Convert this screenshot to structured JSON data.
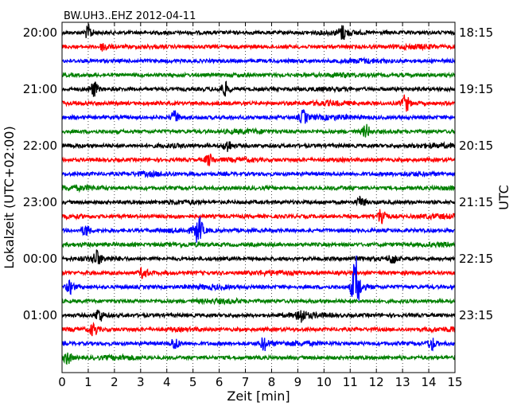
{
  "chart_data": {
    "type": "line",
    "title": "BW.UH3..EHZ 2012-04-11",
    "xlabel": "Zeit  [min]",
    "ylabel": "Lokalzeit (UTC+02:00)",
    "ylabel_right": "UTC",
    "xlim": [
      0,
      15
    ],
    "x_ticks": [
      "0",
      "1",
      "2",
      "3",
      "4",
      "5",
      "6",
      "7",
      "8",
      "9",
      "10",
      "11",
      "12",
      "13",
      "14",
      "15"
    ],
    "left_ticks": [
      "20:00",
      "21:00",
      "22:00",
      "23:00",
      "00:00",
      "01:00"
    ],
    "right_ticks": [
      "18:15",
      "19:15",
      "20:15",
      "21:15",
      "22:15",
      "23:15"
    ],
    "grid": true,
    "trace_colors": [
      "#000000",
      "#ff0000",
      "#0000ff",
      "#008000"
    ],
    "num_traces": 24,
    "traces_per_hour": 4,
    "minutes_per_trace": 15,
    "events": [
      {
        "trace": 0,
        "minute": 1.0,
        "amp": 1.1
      },
      {
        "trace": 0,
        "minute": 10.7,
        "amp": 1.0
      },
      {
        "trace": 1,
        "minute": 1.6,
        "amp": 0.8
      },
      {
        "trace": 4,
        "minute": 1.2,
        "amp": 1.2
      },
      {
        "trace": 4,
        "minute": 6.2,
        "amp": 1.0
      },
      {
        "trace": 5,
        "minute": 13.1,
        "amp": 1.4
      },
      {
        "trace": 6,
        "minute": 4.3,
        "amp": 1.0
      },
      {
        "trace": 6,
        "minute": 9.2,
        "amp": 1.1
      },
      {
        "trace": 7,
        "minute": 11.6,
        "amp": 1.0
      },
      {
        "trace": 8,
        "minute": 6.3,
        "amp": 1.0
      },
      {
        "trace": 9,
        "minute": 5.6,
        "amp": 0.9
      },
      {
        "trace": 12,
        "minute": 11.4,
        "amp": 0.9
      },
      {
        "trace": 13,
        "minute": 12.2,
        "amp": 1.5
      },
      {
        "trace": 14,
        "minute": 5.2,
        "amp": 2.2
      },
      {
        "trace": 14,
        "minute": 0.9,
        "amp": 0.9
      },
      {
        "trace": 16,
        "minute": 1.3,
        "amp": 1.1
      },
      {
        "trace": 16,
        "minute": 12.6,
        "amp": 0.9
      },
      {
        "trace": 17,
        "minute": 3.1,
        "amp": 0.9
      },
      {
        "trace": 18,
        "minute": 0.3,
        "amp": 1.0
      },
      {
        "trace": 18,
        "minute": 11.2,
        "amp": 5.0
      },
      {
        "trace": 20,
        "minute": 1.4,
        "amp": 1.1
      },
      {
        "trace": 20,
        "minute": 9.1,
        "amp": 1.0
      },
      {
        "trace": 21,
        "minute": 1.2,
        "amp": 1.0
      },
      {
        "trace": 22,
        "minute": 4.3,
        "amp": 1.0
      },
      {
        "trace": 22,
        "minute": 7.7,
        "amp": 1.1
      },
      {
        "trace": 22,
        "minute": 14.1,
        "amp": 1.0
      },
      {
        "trace": 23,
        "minute": 0.2,
        "amp": 1.0
      }
    ]
  }
}
